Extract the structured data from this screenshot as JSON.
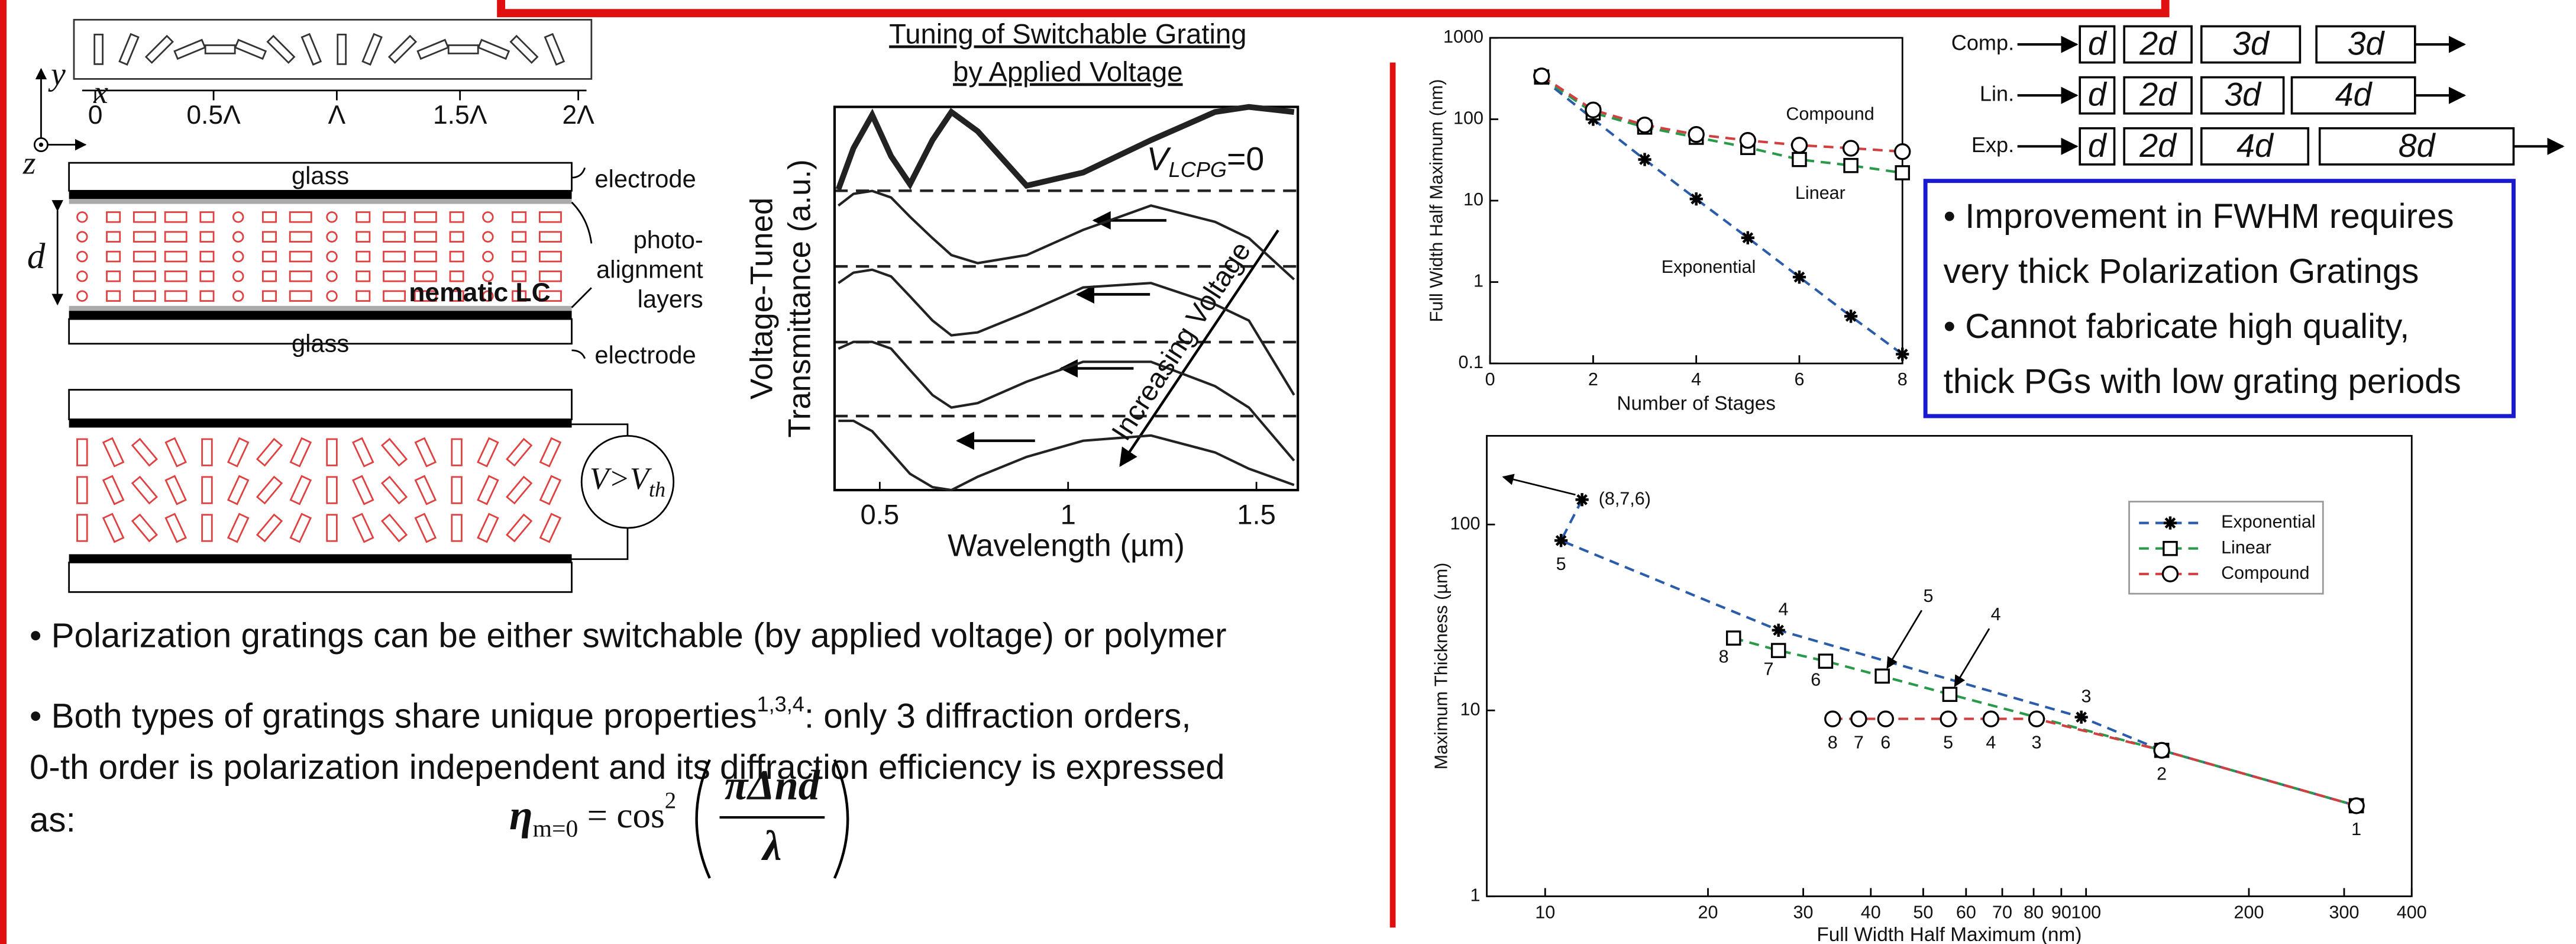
{
  "chart_data": [
    {
      "type": "line",
      "title": [
        "Tuning of Switchable Grating",
        "by Applied Voltage"
      ],
      "xlabel": "Wavelength (µm)",
      "ylabel": [
        "Voltage-Tuned",
        "Transmittance (a.u.)"
      ],
      "x": [
        0.39,
        0.43,
        0.48,
        0.53,
        0.58,
        0.64,
        0.69,
        0.76,
        0.89,
        1.04,
        1.22,
        1.39,
        1.48,
        1.6
      ],
      "series": [
        {
          "color": "#222222",
          "values": [
            4.08,
            4.64,
            5.09,
            4.53,
            4.15,
            4.75,
            5.13,
            4.87,
            4.13,
            4.31,
            4.75,
            5.13,
            5.2,
            5.13
          ]
        },
        {
          "color": "#222222",
          "values": [
            3.86,
            4.02,
            4.06,
            3.97,
            3.71,
            3.42,
            3.19,
            3.08,
            3.19,
            3.53,
            3.86,
            3.64,
            3.42,
            2.86
          ]
        },
        {
          "color": "#222222",
          "values": [
            2.81,
            2.95,
            2.99,
            2.9,
            2.63,
            2.3,
            2.1,
            2.14,
            2.41,
            2.75,
            2.81,
            2.52,
            2.3,
            1.29
          ]
        },
        {
          "color": "#222222",
          "values": [
            1.92,
            2.01,
            2.01,
            1.92,
            1.63,
            1.29,
            1.12,
            1.18,
            1.47,
            1.74,
            1.74,
            1.41,
            1.12,
            0.4
          ]
        },
        {
          "color": "#222222",
          "values": [
            0.94,
            0.94,
            0.8,
            0.51,
            0.22,
            0.04,
            0.0,
            0.18,
            0.45,
            0.67,
            0.74,
            0.51,
            0.29,
            0.07
          ]
        }
      ],
      "xlim": [
        0.38,
        1.61
      ],
      "ylim": [
        0,
        5.2
      ],
      "xticks": [
        0.5,
        1,
        1.5
      ],
      "annotations": {
        "v_main": "V",
        "v_sub": "LCPG",
        "v_rest": "=0",
        "arrow_text": "Increasing Voltage"
      }
    },
    {
      "type": "line",
      "xlabel": "Number of Stages",
      "ylabel": "Full Width Half Maximum (nm)",
      "x": [
        1,
        2,
        3,
        4,
        5,
        6,
        7,
        8
      ],
      "series": [
        {
          "name": "Exponential",
          "color": "#2a5caa",
          "marker": "star",
          "values": [
            320,
            100,
            32,
            10.5,
            3.5,
            1.15,
            0.38,
            0.13
          ]
        },
        {
          "name": "Linear",
          "color": "#2a9a4a",
          "marker": "square",
          "values": [
            330,
            120,
            80,
            60,
            45,
            32,
            27,
            22
          ]
        },
        {
          "name": "Compound",
          "color": "#d04040",
          "marker": "circle",
          "values": [
            340,
            130,
            85,
            65,
            55,
            48,
            44,
            40
          ]
        }
      ],
      "xlim": [
        0,
        8
      ],
      "ylim": [
        0.1,
        1000
      ],
      "log_y": true,
      "line_style": "dashed",
      "xticks": [
        0,
        2,
        4,
        6,
        8
      ],
      "yticks": [
        0.1,
        1,
        10,
        100,
        1000
      ]
    },
    {
      "type": "line",
      "xlabel": "Full Width Half Maximum (nm)",
      "ylabel": "Maximum Thickness (µm)",
      "series": [
        {
          "name": "Exponential",
          "color": "#2a5caa",
          "marker": "star",
          "x": [
            11.7,
            10.7,
            27,
            98,
            138,
            316
          ],
          "values": [
            136,
            82,
            27,
            9.2,
            6.1,
            3.07
          ],
          "point_labels": [
            "(8,7,6)",
            "5",
            "4",
            "3",
            "2",
            "1"
          ]
        },
        {
          "name": "Linear",
          "color": "#2a9a4a",
          "marker": "square",
          "x": [
            22.3,
            27,
            33,
            42,
            56,
            138,
            316
          ],
          "values": [
            24.5,
            21,
            18.4,
            15.3,
            12.2,
            6.1,
            3.07
          ],
          "point_labels": [
            "8",
            "7",
            "6",
            "5",
            "4",
            null,
            null
          ]
        },
        {
          "name": "Compound",
          "color": "#d04040",
          "marker": "circle",
          "x": [
            34,
            38,
            42.6,
            55.6,
            66.7,
            81,
            138,
            316
          ],
          "values": [
            9,
            9,
            9,
            9,
            9,
            9,
            6.1,
            3.07
          ],
          "point_labels": [
            "8",
            "7",
            "6",
            "5",
            "4",
            "3",
            null,
            null
          ]
        }
      ],
      "xlim": [
        7.8,
        400
      ],
      "ylim": [
        1,
        300
      ],
      "log_x": true,
      "log_y": true,
      "line_style": "dashed",
      "xticks": [
        10,
        20,
        30,
        40,
        50,
        60,
        70,
        80,
        90,
        100,
        200,
        300,
        400
      ],
      "yticks": [
        1,
        10,
        100
      ],
      "legend": "upper right"
    }
  ],
  "diagram": {
    "axis_y": "y",
    "axis_x": "x",
    "axis_z": "z",
    "period_ticks": [
      "0",
      "0.5Λ",
      "Λ",
      "1.5Λ",
      "2Λ"
    ],
    "glass_top": "glass",
    "electrode_top": "electrode",
    "alignment": [
      "photo-",
      "alignment",
      "layers"
    ],
    "thickness": "d",
    "lc": "nematic LC",
    "glass_bottom": "glass",
    "electrode_bottom": "electrode",
    "voltage_main": "V>V",
    "voltage_sub": "th"
  },
  "bullets": [
    {
      "text": "• Polarization gratings can be either switchable (by applied voltage) or polymer"
    },
    {
      "text": "• Both types of gratings share unique properties",
      "sup": "1,3,4",
      "rest": ": only 3 diffraction orders,",
      "lines": [
        "0-th order is polarization independent and its diffraction efficiency is expressed",
        "as:"
      ]
    }
  ],
  "equation": {
    "symbol": "η",
    "sub": "m=0",
    "middle": " = cos",
    "power": "2",
    "numerator": "πΔnd",
    "denominator": "λ"
  },
  "stages": [
    {
      "label": "Comp.",
      "boxes": [
        "d",
        "2d",
        "3d",
        "3d"
      ]
    },
    {
      "label": "Lin.",
      "boxes": [
        "d",
        "2d",
        "3d",
        "4d"
      ]
    },
    {
      "label": "Exp.",
      "boxes": [
        "d",
        "2d",
        "4d",
        "8d"
      ]
    }
  ],
  "notes": [
    "• Improvement in FWHM requires",
    "very thick Polarization Gratings",
    "• Cannot fabricate high quality,",
    "thick PGs with low grating periods"
  ]
}
